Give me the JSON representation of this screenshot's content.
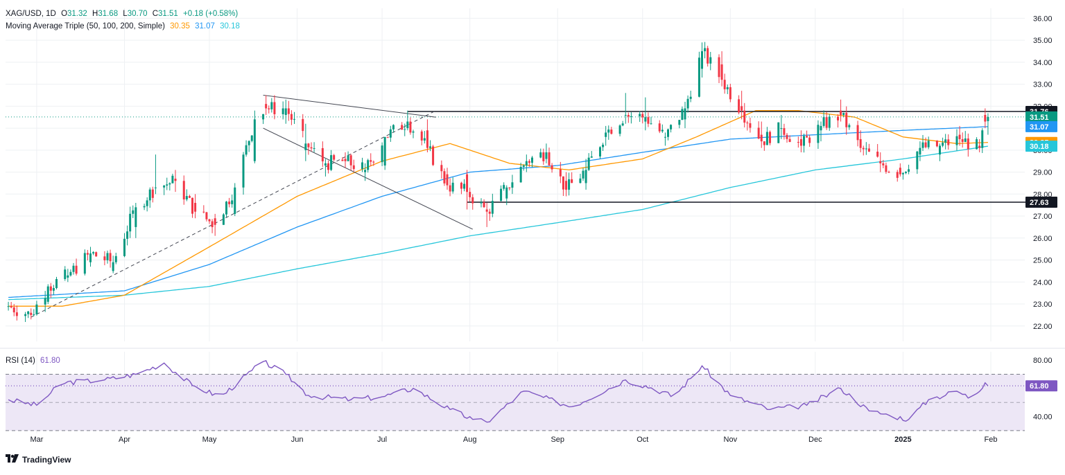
{
  "header": {
    "symbol": "XAG/USD, 1D",
    "open_label": "O",
    "open": "31.32",
    "high_label": "H",
    "high": "31.68",
    "low_label": "L",
    "low": "30.70",
    "close_label": "C",
    "close": "31.51",
    "change": "+0.18 (+0.58%)",
    "ma_title": "Moving Average Triple (50, 100, 200, Simple)",
    "ma50": "30.35",
    "ma100": "31.07",
    "ma200": "30.18"
  },
  "rsi_header": {
    "title": "RSI (14)",
    "value": "61.80"
  },
  "brand": {
    "name": "TradingView",
    "icon": "tradingview-logo-icon"
  },
  "colors": {
    "up": "#089981",
    "down": "#f23645",
    "ma50": "#ff9800",
    "ma100": "#2196f3",
    "ma200": "#26c6da",
    "rsi": "#7e57c2",
    "rsi_band": "#ede7f6",
    "grid": "#eef0f3",
    "price_line": "#089981",
    "level": "#131722"
  },
  "chart_data": [
    {
      "type": "candlestick",
      "title": "XAG/USD, 1D",
      "x_labels": [
        "Mar",
        "Apr",
        "May",
        "Jun",
        "Jul",
        "Aug",
        "Sep",
        "Oct",
        "Nov",
        "Dec",
        "2025",
        "Feb"
      ],
      "y_ticks": [
        "22.00",
        "23.00",
        "24.00",
        "25.00",
        "26.00",
        "27.00",
        "28.00",
        "29.00",
        "30.00",
        "31.00",
        "32.00",
        "33.00",
        "34.00",
        "35.00",
        "36.00"
      ],
      "ylim": [
        21.3,
        36.2
      ],
      "grid": true,
      "price_labels": [
        {
          "value": 31.76,
          "text": "31.76",
          "kind": "level"
        },
        {
          "value": 31.51,
          "text": "31.51",
          "kind": "last"
        },
        {
          "value": 31.07,
          "text": "31.07",
          "kind": "ma100"
        },
        {
          "value": 30.35,
          "text": "30.35",
          "kind": "ma50"
        },
        {
          "value": 30.18,
          "text": "30.18",
          "kind": "ma200"
        },
        {
          "value": 27.63,
          "text": "27.63",
          "kind": "level"
        }
      ],
      "horizontal_levels": [
        {
          "value": 31.76,
          "from": "2024-07-10",
          "to": "2025-02-01"
        },
        {
          "value": 27.63,
          "from": "2024-07-31",
          "to": "2025-02-01"
        }
      ],
      "trendlines": [
        {
          "style": "solid",
          "points": [
            [
              "2024-05-20",
              32.5
            ],
            [
              "2024-07-20",
              31.5
            ]
          ]
        },
        {
          "style": "solid",
          "points": [
            [
              "2024-05-20",
              31.0
            ],
            [
              "2024-08-02",
              26.4
            ]
          ]
        },
        {
          "style": "dashed",
          "points": [
            [
              "2024-02-28",
              22.4
            ],
            [
              "2024-07-20",
              31.8
            ]
          ]
        }
      ],
      "ohlc_anchors": [
        [
          "2024-02-20",
          22.9,
          23.1,
          22.7,
          22.9
        ],
        [
          "2024-02-28",
          22.6,
          22.8,
          22.3,
          22.5
        ],
        [
          "2024-03-05",
          23.1,
          23.9,
          23.0,
          23.8
        ],
        [
          "2024-03-12",
          24.2,
          24.6,
          24.0,
          24.3
        ],
        [
          "2024-03-20",
          24.9,
          25.6,
          24.7,
          25.3
        ],
        [
          "2024-03-28",
          24.5,
          25.2,
          24.4,
          24.9
        ],
        [
          "2024-04-05",
          26.5,
          27.6,
          26.0,
          27.4
        ],
        [
          "2024-04-12",
          28.3,
          29.8,
          28.0,
          28.3
        ],
        [
          "2024-04-19",
          28.7,
          29.1,
          28.1,
          28.6
        ],
        [
          "2024-04-26",
          27.6,
          28.0,
          26.9,
          27.2
        ],
        [
          "2024-05-03",
          26.9,
          27.1,
          26.1,
          26.6
        ],
        [
          "2024-05-10",
          27.1,
          28.5,
          27.0,
          28.3
        ],
        [
          "2024-05-17",
          29.5,
          31.8,
          29.4,
          31.4
        ],
        [
          "2024-05-21",
          32.1,
          32.5,
          31.6,
          31.9
        ],
        [
          "2024-05-28",
          31.6,
          32.3,
          31.2,
          31.9
        ],
        [
          "2024-06-04",
          30.0,
          31.2,
          29.5,
          30.3
        ],
        [
          "2024-06-11",
          29.3,
          29.6,
          28.8,
          29.4
        ],
        [
          "2024-06-18",
          29.6,
          29.9,
          29.2,
          29.5
        ],
        [
          "2024-06-25",
          29.0,
          29.4,
          28.6,
          29.1
        ],
        [
          "2024-07-02",
          29.3,
          30.4,
          29.1,
          30.6
        ],
        [
          "2024-07-10",
          31.0,
          31.8,
          30.9,
          31.3
        ],
        [
          "2024-07-17",
          30.9,
          31.4,
          29.9,
          30.1
        ],
        [
          "2024-07-24",
          28.9,
          29.2,
          28.2,
          28.4
        ],
        [
          "2024-07-31",
          28.9,
          29.1,
          27.3,
          28.1
        ],
        [
          "2024-08-07",
          27.3,
          27.6,
          26.5,
          27.2
        ],
        [
          "2024-08-14",
          27.8,
          28.4,
          27.5,
          28.3
        ],
        [
          "2024-08-21",
          29.3,
          29.8,
          29.0,
          29.5
        ],
        [
          "2024-08-28",
          29.6,
          30.3,
          29.4,
          29.9
        ],
        [
          "2024-09-04",
          28.6,
          29.0,
          27.9,
          28.2
        ],
        [
          "2024-09-11",
          28.5,
          29.6,
          28.2,
          29.1
        ],
        [
          "2024-09-18",
          30.6,
          31.1,
          30.2,
          30.8
        ],
        [
          "2024-09-25",
          31.6,
          32.6,
          31.2,
          31.6
        ],
        [
          "2024-10-02",
          31.3,
          32.4,
          30.9,
          31.5
        ],
        [
          "2024-10-09",
          30.6,
          30.8,
          30.2,
          30.6
        ],
        [
          "2024-10-16",
          31.4,
          32.2,
          31.0,
          31.9
        ],
        [
          "2024-10-22",
          33.7,
          34.9,
          33.3,
          34.5
        ],
        [
          "2024-10-29",
          33.9,
          34.5,
          32.9,
          33.2
        ],
        [
          "2024-11-05",
          32.0,
          32.7,
          31.4,
          31.8
        ],
        [
          "2024-11-12",
          30.7,
          31.3,
          30.1,
          30.4
        ],
        [
          "2024-11-19",
          31.0,
          31.6,
          30.5,
          31.0
        ],
        [
          "2024-11-26",
          30.5,
          30.9,
          29.9,
          30.2
        ],
        [
          "2024-12-03",
          30.9,
          31.3,
          30.4,
          31.1
        ],
        [
          "2024-12-10",
          31.8,
          32.3,
          31.3,
          31.6
        ],
        [
          "2024-12-17",
          30.5,
          30.9,
          29.9,
          30.1
        ],
        [
          "2024-12-24",
          29.5,
          29.9,
          29.0,
          29.4
        ],
        [
          "2024-12-31",
          29.2,
          29.4,
          28.8,
          28.9
        ],
        [
          "2025-01-07",
          29.8,
          30.4,
          29.5,
          30.1
        ],
        [
          "2025-01-14",
          29.8,
          30.3,
          29.5,
          30.2
        ],
        [
          "2025-01-21",
          30.7,
          31.1,
          30.2,
          30.5
        ],
        [
          "2025-01-28",
          30.2,
          30.5,
          29.9,
          30.1
        ],
        [
          "2025-01-30",
          31.6,
          31.9,
          31.0,
          31.3
        ],
        [
          "2025-01-31",
          31.32,
          31.68,
          30.7,
          31.51
        ]
      ],
      "ma50_anchors": [
        [
          "2024-02-20",
          22.9
        ],
        [
          "2024-03-10",
          22.9
        ],
        [
          "2024-04-01",
          23.4
        ],
        [
          "2024-05-01",
          25.6
        ],
        [
          "2024-06-01",
          27.9
        ],
        [
          "2024-07-01",
          29.5
        ],
        [
          "2024-07-25",
          30.3
        ],
        [
          "2024-08-15",
          29.4
        ],
        [
          "2024-09-05",
          29.1
        ],
        [
          "2024-10-01",
          29.6
        ],
        [
          "2024-10-20",
          30.6
        ],
        [
          "2024-11-10",
          31.8
        ],
        [
          "2024-11-25",
          31.8
        ],
        [
          "2024-12-15",
          31.5
        ],
        [
          "2025-01-01",
          30.6
        ],
        [
          "2025-01-20",
          30.3
        ],
        [
          "2025-01-31",
          30.35
        ]
      ],
      "ma100_anchors": [
        [
          "2024-02-20",
          23.3
        ],
        [
          "2024-04-01",
          23.6
        ],
        [
          "2024-05-01",
          24.8
        ],
        [
          "2024-06-01",
          26.5
        ],
        [
          "2024-07-01",
          27.9
        ],
        [
          "2024-08-01",
          29.0
        ],
        [
          "2024-09-01",
          29.3
        ],
        [
          "2024-10-01",
          29.9
        ],
        [
          "2024-11-01",
          30.5
        ],
        [
          "2024-12-01",
          30.7
        ],
        [
          "2025-01-01",
          30.9
        ],
        [
          "2025-01-31",
          31.07
        ]
      ],
      "ma200_anchors": [
        [
          "2024-02-20",
          23.2
        ],
        [
          "2024-04-01",
          23.4
        ],
        [
          "2024-05-01",
          23.8
        ],
        [
          "2024-06-01",
          24.6
        ],
        [
          "2024-07-01",
          25.3
        ],
        [
          "2024-08-01",
          26.1
        ],
        [
          "2024-09-01",
          26.7
        ],
        [
          "2024-10-01",
          27.3
        ],
        [
          "2024-11-01",
          28.3
        ],
        [
          "2024-12-01",
          29.1
        ],
        [
          "2025-01-01",
          29.6
        ],
        [
          "2025-01-31",
          30.18
        ]
      ]
    },
    {
      "type": "line",
      "title": "RSI (14)",
      "ylim": [
        28,
        86
      ],
      "y_ticks": [
        "40.00",
        "80.00"
      ],
      "bands": [
        30,
        50,
        70
      ],
      "midline": 50,
      "last_value": 61.8,
      "series": [
        {
          "values_anchors": [
            [
              "2024-02-20",
              52
            ],
            [
              "2024-03-01",
              48
            ],
            [
              "2024-03-10",
              64
            ],
            [
              "2024-03-25",
              66
            ],
            [
              "2024-04-05",
              70
            ],
            [
              "2024-04-15",
              78
            ],
            [
              "2024-04-25",
              62
            ],
            [
              "2024-05-05",
              54
            ],
            [
              "2024-05-20",
              79
            ],
            [
              "2024-05-28",
              70
            ],
            [
              "2024-06-05",
              55
            ],
            [
              "2024-06-20",
              52
            ],
            [
              "2024-07-01",
              54
            ],
            [
              "2024-07-12",
              60
            ],
            [
              "2024-07-25",
              45
            ],
            [
              "2024-08-02",
              38
            ],
            [
              "2024-08-07",
              36
            ],
            [
              "2024-08-20",
              58
            ],
            [
              "2024-09-06",
              47
            ],
            [
              "2024-09-25",
              66
            ],
            [
              "2024-10-05",
              60
            ],
            [
              "2024-10-12",
              54
            ],
            [
              "2024-10-22",
              76
            ],
            [
              "2024-11-01",
              55
            ],
            [
              "2024-11-15",
              45
            ],
            [
              "2024-11-28",
              48
            ],
            [
              "2024-12-10",
              60
            ],
            [
              "2024-12-20",
              44
            ],
            [
              "2024-12-27",
              41
            ],
            [
              "2025-01-03",
              38
            ],
            [
              "2025-01-10",
              52
            ],
            [
              "2025-01-20",
              58
            ],
            [
              "2025-01-25",
              53
            ],
            [
              "2025-01-30",
              64
            ],
            [
              "2025-01-31",
              61.8
            ]
          ]
        }
      ]
    }
  ]
}
